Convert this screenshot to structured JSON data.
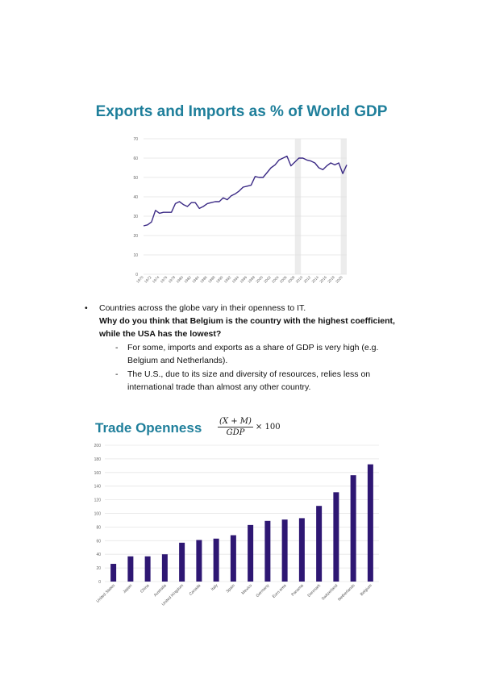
{
  "chart1": {
    "title": "Exports and Imports as % of World GDP",
    "chart_data": {
      "type": "line",
      "title": "Exports and Imports as % of World GDP",
      "xlabel": "",
      "ylabel": "",
      "ylim": [
        0,
        70
      ],
      "yticks": [
        "0",
        "10",
        "20",
        "30",
        "40",
        "50",
        "60",
        "70"
      ],
      "xticks": [
        "1970",
        "1972",
        "1974",
        "1976",
        "1978",
        "1980",
        "1982",
        "1984",
        "1986",
        "1988",
        "1990",
        "1992",
        "1994",
        "1996",
        "1998",
        "2000",
        "2002",
        "2004",
        "2006",
        "2008",
        "2010",
        "2012",
        "2014",
        "2016",
        "2018",
        "2020"
      ],
      "grid": "horizontal",
      "shaded_ranges": [
        [
          2008,
          2009.5
        ],
        [
          2019.5,
          2021
        ]
      ],
      "series": [
        {
          "x": [
            1970,
            1971,
            1972,
            1973,
            1974,
            1975,
            1976,
            1977,
            1978,
            1979,
            1980,
            1981,
            1982,
            1983,
            1984,
            1985,
            1986,
            1987,
            1988,
            1989,
            1990,
            1991,
            1992,
            1993,
            1994,
            1995,
            1996,
            1997,
            1998,
            1999,
            2000,
            2001,
            2002,
            2003,
            2004,
            2005,
            2006,
            2007,
            2008,
            2009,
            2010,
            2011,
            2012,
            2013,
            2014,
            2015,
            2016,
            2017,
            2018,
            2019,
            2020,
            2021
          ],
          "values": [
            25,
            25.5,
            27,
            33,
            31.5,
            32,
            32,
            32,
            36.5,
            37.5,
            36,
            35,
            37,
            37,
            34,
            35,
            36.5,
            37,
            37.5,
            37.5,
            39.5,
            38.5,
            40.5,
            41.5,
            43,
            45,
            45.5,
            46,
            50.5,
            50,
            50,
            52.5,
            55,
            56.5,
            59,
            60,
            61,
            56,
            58,
            60,
            60,
            59,
            58.5,
            57.5,
            55,
            54,
            56,
            57.5,
            56.5,
            57.5,
            52,
            56.5
          ]
        }
      ]
    }
  },
  "bullets": {
    "b1": "Countries across the globe vary in their openness to IT.",
    "question": "Why do you think that Belgium is the country with the highest coefficient, while the USA has the lowest?",
    "sub1": "For some, imports and exports as a share of GDP is very high (e.g. Belgium and Netherlands).",
    "sub2": "The U.S., due to its size and diversity of resources, relies less on international trade than almost any other country.",
    "bullet_char": "•",
    "dash_char": "-"
  },
  "chart2": {
    "title": "Trade Openness",
    "formula": {
      "numerator": "(X + M)",
      "denominator": "GDP",
      "tail": "× 100"
    },
    "chart_data": {
      "type": "bar",
      "title": "Trade Openness",
      "xlabel": "",
      "ylabel": "",
      "ylim": [
        0,
        200
      ],
      "yticks": [
        "0",
        "20",
        "40",
        "60",
        "80",
        "100",
        "120",
        "140",
        "160",
        "180",
        "200"
      ],
      "grid": "horizontal",
      "bar_color": "#2e1773",
      "categories": [
        "United States",
        "Japan",
        "China",
        "Australia",
        "United Kingdom",
        "Canada",
        "Italy",
        "Spain",
        "Mexico",
        "Germany",
        "Euro area",
        "Panama",
        "Denmark",
        "Switzerland",
        "Netherlands",
        "Belgium"
      ],
      "values": [
        26,
        37,
        37,
        40,
        57,
        61,
        63,
        68,
        83,
        89,
        91,
        93,
        111,
        131,
        156,
        172
      ]
    }
  }
}
